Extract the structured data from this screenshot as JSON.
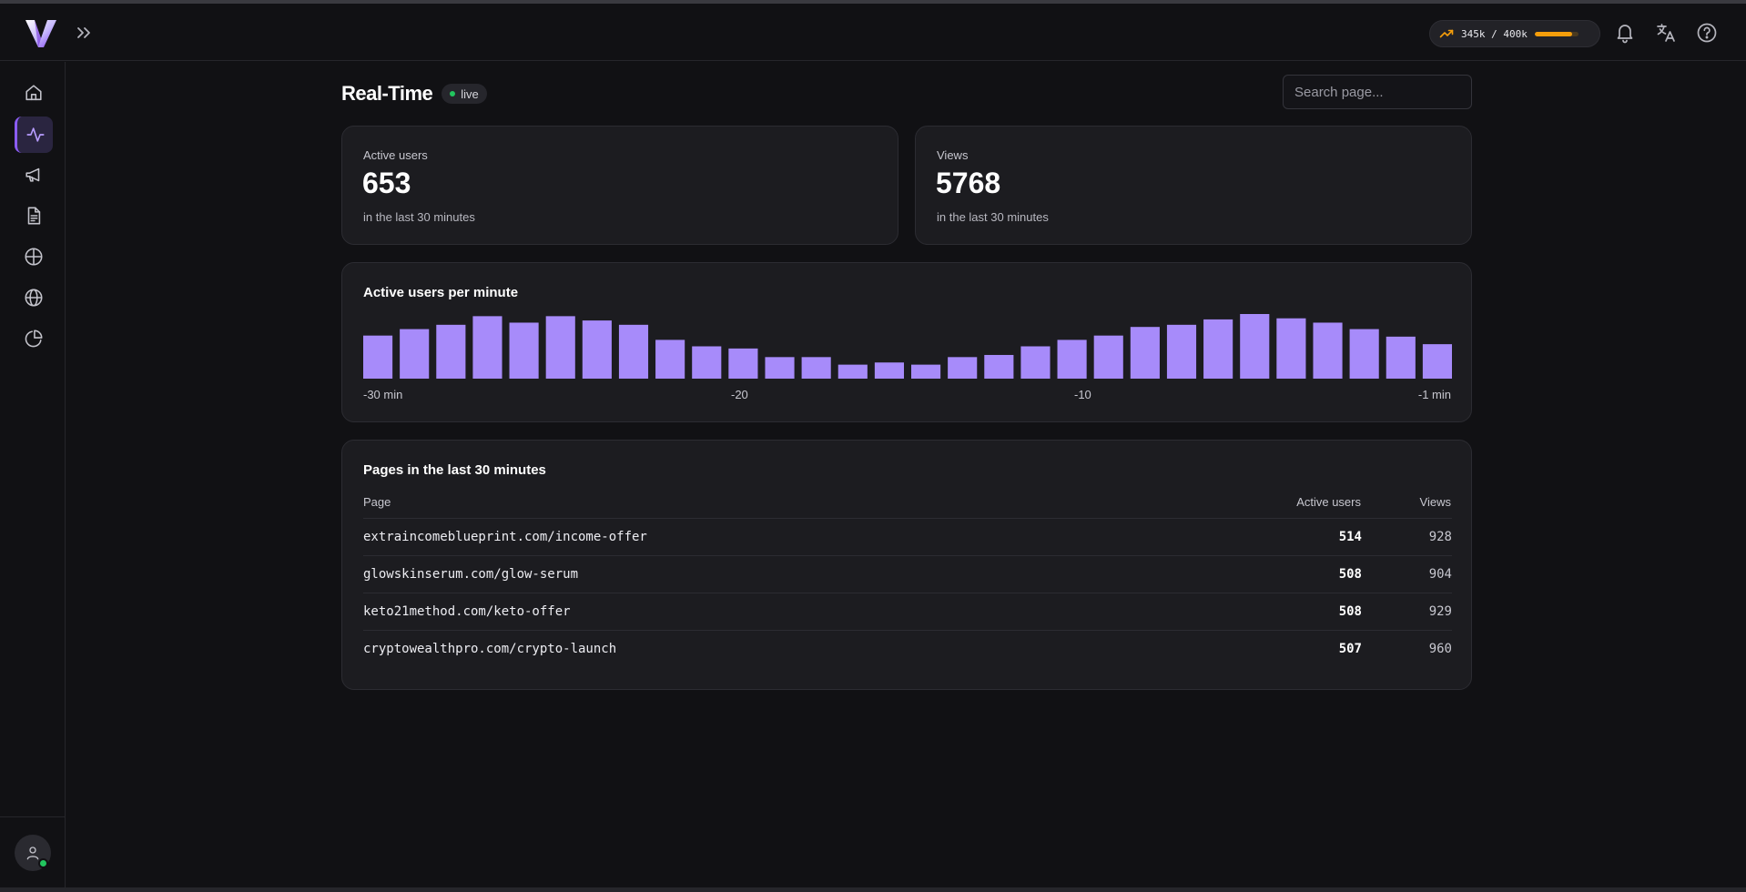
{
  "header": {
    "quota": {
      "text": "345k / 400k",
      "used_fraction": 0.86,
      "color": "#f59e0b"
    },
    "icons": [
      "bell-icon",
      "translate-icon",
      "help-icon"
    ]
  },
  "sidebar": {
    "items": [
      {
        "name": "home",
        "icon": "home-icon",
        "active": false
      },
      {
        "name": "realtime",
        "icon": "activity-icon",
        "active": true
      },
      {
        "name": "campaigns",
        "icon": "megaphone-icon",
        "active": false
      },
      {
        "name": "pages",
        "icon": "file-text-icon",
        "active": false
      },
      {
        "name": "targets",
        "icon": "crosshair-icon",
        "active": false
      },
      {
        "name": "geo",
        "icon": "globe-icon",
        "active": false
      },
      {
        "name": "reports",
        "icon": "pie-chart-icon",
        "active": false
      }
    ],
    "accent": "#8b5cf6"
  },
  "page": {
    "title": "Real-Time",
    "badge": "live",
    "search_placeholder": "Search page..."
  },
  "stats": [
    {
      "label": "Active users",
      "value": "653",
      "sub": "in the last 30 minutes"
    },
    {
      "label": "Views",
      "value": "5768",
      "sub": "in the last 30 minutes"
    }
  ],
  "chart_data": {
    "type": "bar",
    "title": "Active users per minute",
    "x_tick_labels": [
      "-30 min",
      "-20",
      "-10",
      "-1 min"
    ],
    "values": [
      20,
      23,
      25,
      29,
      26,
      29,
      27,
      25,
      18,
      15,
      14,
      10,
      10,
      6.5,
      7.5,
      6.5,
      10,
      11,
      15,
      18,
      20,
      24,
      25,
      27.5,
      30,
      28,
      26,
      23,
      19.5,
      16
    ],
    "ylim": [
      0,
      30
    ],
    "bar_color": "#a78bfa",
    "grid": false
  },
  "pages_table": {
    "title": "Pages in the last 30 minutes",
    "columns": [
      "Page",
      "Active users",
      "Views"
    ],
    "rows": [
      {
        "page": "extraincomeblueprint.com/income-offer",
        "active_users": "514",
        "views": "928"
      },
      {
        "page": "glowskinserum.com/glow-serum",
        "active_users": "508",
        "views": "904"
      },
      {
        "page": "keto21method.com/keto-offer",
        "active_users": "508",
        "views": "929"
      },
      {
        "page": "cryptowealthpro.com/crypto-launch",
        "active_users": "507",
        "views": "960"
      }
    ]
  }
}
